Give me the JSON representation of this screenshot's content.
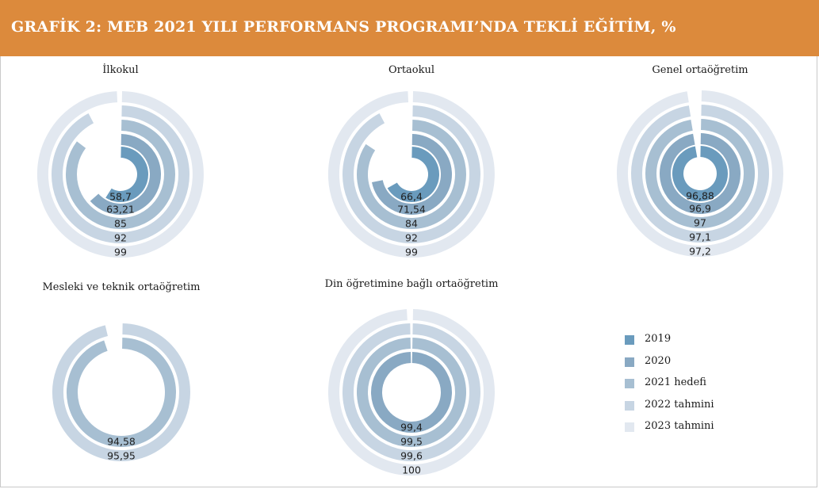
{
  "title": "GRAFİK 2: MEB 2021 YILI PERFORMANS PROGRAMI’NDA TEKLİ EĞİTİM, %",
  "chart_data": {
    "type": "radial_bar",
    "unit": "%",
    "max": 100,
    "series": [
      {
        "name": "2019",
        "color": "#6a9bbd"
      },
      {
        "name": "2020",
        "color": "#89a9c3"
      },
      {
        "name": "2021 hedefi",
        "color": "#a7bfd2"
      },
      {
        "name": "2022 tahmini",
        "color": "#c7d5e3"
      },
      {
        "name": "2023 tahmini",
        "color": "#e2e8f0"
      }
    ],
    "panels": [
      {
        "title": "İlkokul",
        "values": [
          58.7,
          63.21,
          85,
          92,
          99
        ],
        "labels": [
          "58,7",
          "63,21",
          "85",
          "92",
          "99"
        ]
      },
      {
        "title": "Ortaokul",
        "values": [
          66.4,
          71.54,
          84,
          92,
          99
        ],
        "labels": [
          "66,4",
          "71,54",
          "84",
          "92",
          "99"
        ]
      },
      {
        "title": "Genel ortaöğretim",
        "values": [
          96.88,
          96.9,
          97,
          97.1,
          97.2
        ],
        "labels": [
          "96,88",
          "96,9",
          "97",
          "97,1",
          "97,2"
        ]
      },
      {
        "title": "Mesleki ve teknik ortaöğretim",
        "values": [
          null,
          null,
          94.58,
          95.95,
          null
        ],
        "labels": [
          "",
          "",
          "94,58",
          "95,95",
          ""
        ]
      },
      {
        "title": "Din öğretimine bağlı ortaöğretim",
        "values": [
          null,
          99.4,
          99.5,
          99.6,
          100
        ],
        "labels": [
          "",
          "99,4",
          "99,5",
          "99,6",
          "100"
        ]
      }
    ]
  }
}
